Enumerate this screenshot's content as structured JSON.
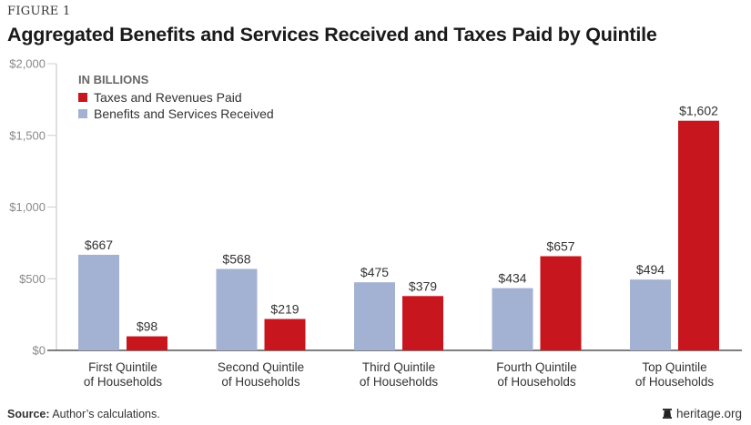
{
  "figure_label": "FIGURE 1",
  "source_label": "Source:",
  "source_text": "Author’s calculations.",
  "credit": "heritage.org",
  "credit_icon": "liberty-bell-icon",
  "chart_data": {
    "type": "bar",
    "title": "Aggregated Benefits and Services Received and Taxes Paid by Quintile",
    "unit_note": "IN BILLIONS",
    "xlabel": "",
    "ylabel": "",
    "ylim": [
      0,
      2000
    ],
    "yticks": [
      0,
      500,
      1000,
      1500,
      2000
    ],
    "ytick_labels": [
      "$0",
      "$500",
      "$1,000",
      "$1,500",
      "$2,000"
    ],
    "grid": false,
    "legend_position": "top-left",
    "categories": [
      [
        "First Quintile",
        "of Households"
      ],
      [
        "Second Quintile",
        "of Households"
      ],
      [
        "Third Quintile",
        "of Households"
      ],
      [
        "Fourth Quintile",
        "of Households"
      ],
      [
        "Top Quintile",
        "of Households"
      ]
    ],
    "series": [
      {
        "name": "Benefits and Services Received",
        "color": "#a3b1d2",
        "values": [
          667,
          568,
          475,
          434,
          494
        ],
        "labels": [
          "$667",
          "$568",
          "$475",
          "$434",
          "$494"
        ]
      },
      {
        "name": "Taxes and Revenues Paid",
        "color": "#c8161e",
        "values": [
          98,
          219,
          379,
          657,
          1602
        ],
        "labels": [
          "$98",
          "$219",
          "$379",
          "$657",
          "$1,602"
        ]
      }
    ],
    "legend_order": [
      1,
      0
    ]
  }
}
